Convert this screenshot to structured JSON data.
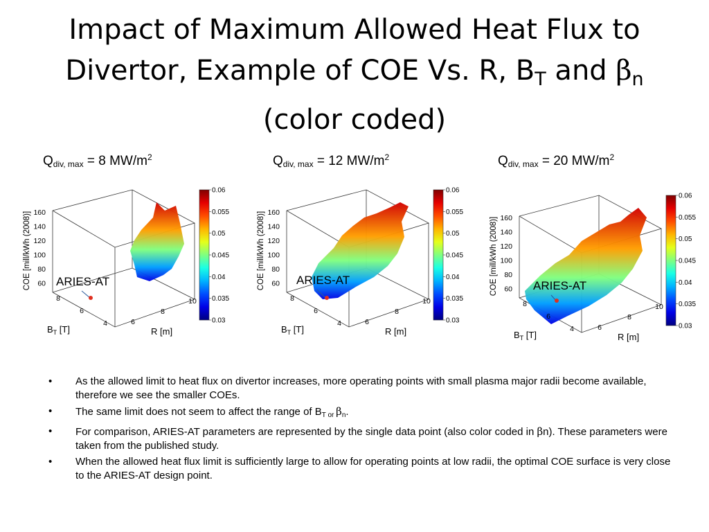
{
  "slide": {
    "title_line1": "Impact of Maximum Allowed Heat Flux to",
    "title_line2_pre": "Divertor, Example of COE Vs. R, B",
    "title_line2_sub": "T",
    "title_line2_mid": " and ",
    "title_beta": "β",
    "title_beta_sub": "n",
    "title_line3": "(color coded)"
  },
  "panels": [
    {
      "q_pre": "Q",
      "q_sub": "div, max",
      "q_post": " = 8 MW/m",
      "q_sup": "2"
    },
    {
      "q_pre": "Q",
      "q_sub": "div, max",
      "q_post": " = 12 MW/m",
      "q_sup": "2"
    },
    {
      "q_pre": "Q",
      "q_sub": "div, max",
      "q_post": " = 20 MW/m",
      "q_sup": "2"
    }
  ],
  "chart_data": [
    {
      "type": "surface3d",
      "zlabel": "COE [mill/kWh (2008)]",
      "xlabel": "R [m]",
      "ylabel_main": "B",
      "ylabel_sub": "T",
      "ylabel_post": " [T]",
      "z_ticks": [
        "160",
        "140",
        "120",
        "100",
        "80",
        "60"
      ],
      "bt_ticks": [
        "8",
        "6",
        "4"
      ],
      "r_ticks": [
        "6",
        "8",
        "10"
      ],
      "colorbar_ticks": [
        "0.06",
        "0.055",
        "0.05",
        "0.045",
        "0.04",
        "0.035",
        "0.03"
      ],
      "colorbar_range": [
        0.03,
        0.06
      ],
      "annotation": "ARIES-AT",
      "colors": {
        "high": "#7f0000",
        "mid": "#7fff7f",
        "low": "#00007f",
        "marker": "#e03020"
      }
    },
    {
      "type": "surface3d",
      "zlabel": "COE [mill/kWh (2008)]",
      "xlabel": "R [m]",
      "ylabel_main": "B",
      "ylabel_sub": "T",
      "ylabel_post": " [T]",
      "z_ticks": [
        "160",
        "140",
        "120",
        "100",
        "80",
        "60"
      ],
      "bt_ticks": [
        "8",
        "6",
        "4"
      ],
      "r_ticks": [
        "6",
        "8",
        "10"
      ],
      "colorbar_ticks": [
        "0.06",
        "0.055",
        "0.05",
        "0.045",
        "0.04",
        "0.035",
        "0.03"
      ],
      "colorbar_range": [
        0.03,
        0.06
      ],
      "annotation": "ARIES-AT",
      "colors": {
        "high": "#7f0000",
        "mid": "#7fff7f",
        "low": "#00007f",
        "marker": "#e03020"
      }
    },
    {
      "type": "surface3d",
      "zlabel": "COE [mill/kWh (2008)]",
      "xlabel": "R [m]",
      "ylabel_main": "B",
      "ylabel_sub": "T",
      "ylabel_post": " [T]",
      "z_ticks": [
        "160",
        "140",
        "120",
        "100",
        "80",
        "60"
      ],
      "bt_ticks": [
        "8",
        "6",
        "4"
      ],
      "r_ticks": [
        "6",
        "8",
        "10"
      ],
      "colorbar_ticks": [
        "0.06",
        "0.055",
        "0.05",
        "0.045",
        "0.04",
        "0.035",
        "0.03"
      ],
      "colorbar_range": [
        0.03,
        0.06
      ],
      "annotation": "ARIES-AT",
      "colors": {
        "high": "#7f0000",
        "mid": "#7fff7f",
        "low": "#00007f",
        "marker": "#e03020"
      }
    }
  ],
  "bullets": {
    "b1": "As the allowed limit to heat flux on divertor increases, more operating points with small plasma major radii become available, therefore we see the smaller COEs.",
    "b2_pre": "The same limit does not seem to affect the range of B",
    "b2_sub": "T or ",
    "b2_beta": "β",
    "b2_beta_sub": "n",
    "b2_post": ".",
    "b3_pre": "For comparison, ARIES-AT parameters are represented by the single data point (also color coded in ",
    "b3_beta": "β",
    "b3_post": "n). These parameters were taken from the published study.",
    "b4": "When the allowed heat flux limit is sufficiently large to allow for operating points at low radii, the optimal COE surface is very close to the ARIES-AT design point.",
    "bullet_char": "•"
  }
}
